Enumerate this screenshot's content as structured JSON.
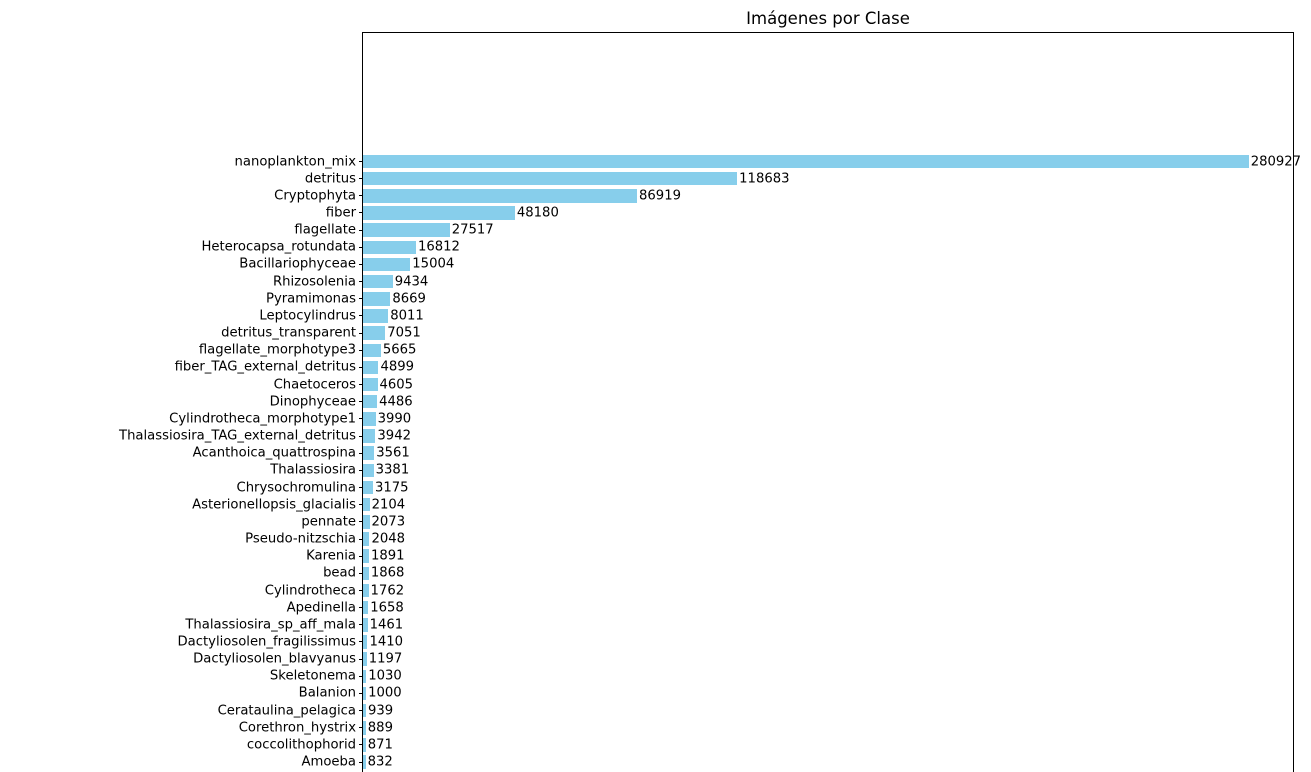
{
  "chart_data": {
    "type": "bar",
    "orientation": "horizontal",
    "title": "Imágenes por Clase",
    "categories": [
      "nanoplankton_mix",
      "detritus",
      "Cryptophyta",
      "fiber",
      "flagellate",
      "Heterocapsa_rotundata",
      "Bacillariophyceae",
      "Rhizosolenia",
      "Pyramimonas",
      "Leptocylindrus",
      "detritus_transparent",
      "flagellate_morphotype3",
      "fiber_TAG_external_detritus",
      "Chaetoceros",
      "Dinophyceae",
      "Cylindrotheca_morphotype1",
      "Thalassiosira_TAG_external_detritus",
      "Acanthoica_quattrospina",
      "Thalassiosira",
      "Chrysochromulina",
      "Asterionellopsis_glacialis",
      "pennate",
      "Pseudo-nitzschia",
      "Karenia",
      "bead",
      "Cylindrotheca",
      "Apedinella",
      "Thalassiosira_sp_aff_mala",
      "Dactyliosolen_fragilissimus",
      "Dactyliosolen_blavyanus",
      "Skeletonema",
      "Balanion",
      "Cerataulina_pelagica",
      "Corethron_hystrix",
      "coccolithophorid",
      "Amoeba"
    ],
    "values": [
      280927,
      118683,
      86919,
      48180,
      27517,
      16812,
      15004,
      9434,
      8669,
      8011,
      7051,
      5665,
      4899,
      4605,
      4486,
      3990,
      3942,
      3561,
      3381,
      3175,
      2104,
      2073,
      2048,
      1891,
      1868,
      1762,
      1658,
      1461,
      1410,
      1197,
      1030,
      1000,
      939,
      889,
      871,
      832
    ],
    "value_labels_shown": true,
    "xlabel": "",
    "ylabel": "",
    "xlim": [
      0,
      294973
    ],
    "grid": false,
    "legend": null,
    "colors": {
      "bar": "#87CEEB",
      "text": "#000000",
      "spine": "#000000",
      "background": "#FFFFFF"
    }
  }
}
